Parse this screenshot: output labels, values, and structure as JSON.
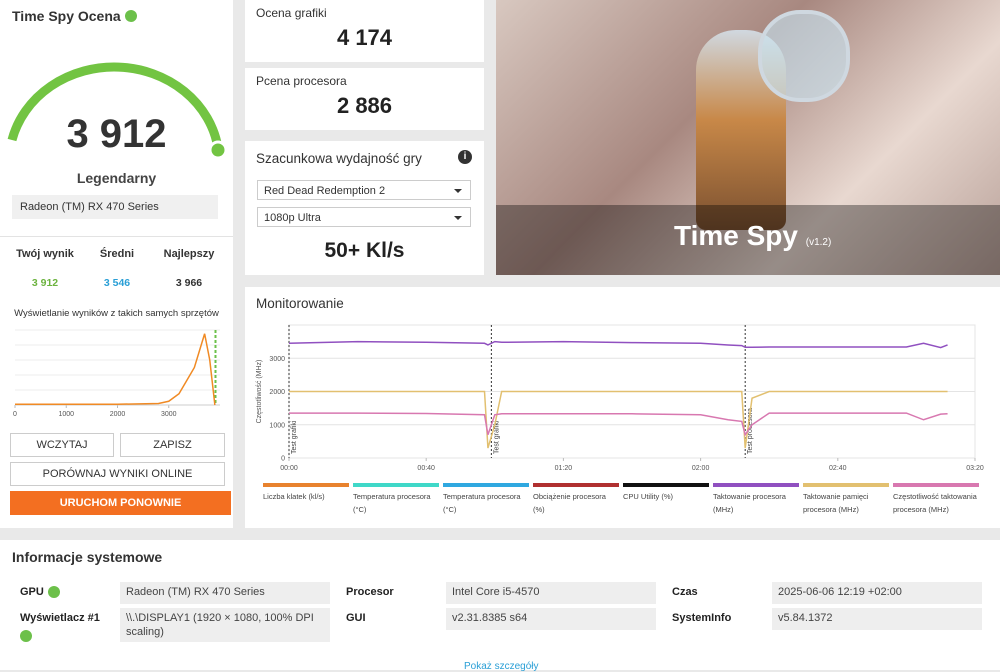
{
  "score_panel": {
    "title": "Time Spy Ocena",
    "score": "3 912",
    "rank": "Legendarny",
    "gpu": "Radeon (TM) RX 470 Series",
    "stats": [
      {
        "label": "Twój wynik",
        "value": "3 912"
      },
      {
        "label": "Średni",
        "value": "3 546"
      },
      {
        "label": "Najlepszy",
        "value": "3 966"
      }
    ],
    "distribution_caption": "Wyświetlanie wyników z takich samych sprzętów",
    "buttons": [
      "WCZYTAJ",
      "ZAPISZ",
      "PORÓWNAJ WYNIKI ONLINE",
      "URUCHOM PONOWNIE"
    ]
  },
  "subscores": [
    {
      "label": "Ocena grafiki",
      "value": "4 174"
    },
    {
      "label": "Pcena procesora",
      "value": "2 886"
    }
  ],
  "estimate": {
    "title": "Szacunkowa wydajność gry",
    "game": "Red Dead Redemption 2",
    "preset": "1080p Ultra",
    "result": "50+ Kl/s"
  },
  "banner": {
    "title": "Time Spy",
    "version": "(v1.2)"
  },
  "monitoring_title": "Monitorowanie",
  "chart_data": [
    {
      "type": "line",
      "x": [
        0,
        2000,
        2800,
        3000,
        3200,
        3500,
        3700,
        3800,
        3900
      ],
      "values": [
        1,
        1,
        2,
        5,
        15,
        50,
        95,
        60,
        0
      ],
      "color": "#f08a24",
      "markers": [
        3912
      ],
      "xlim": [
        0,
        4000
      ],
      "ylim": [
        0,
        100
      ],
      "xticks": [
        0,
        1000,
        2000,
        3000
      ]
    },
    {
      "type": "line",
      "y_label": "Częstotliwość (MHz)",
      "x": [
        0,
        20,
        40,
        57,
        58,
        60,
        62,
        80,
        100,
        120,
        128,
        132,
        133,
        135,
        140,
        160,
        180,
        185,
        190,
        192
      ],
      "series": [
        {
          "name": "Liczba klatek (kl/s)",
          "color": "#e8822e",
          "values": null
        },
        {
          "name": "Temperatura procesora (°C)",
          "color": "#3fd8c8",
          "values": null
        },
        {
          "name": "Temperatura procesora (°C)",
          "color": "#2fa8e0",
          "values": null
        },
        {
          "name": "Obciążenie procesora (%)",
          "color": "#b03030",
          "values": null
        },
        {
          "name": "CPU Utility (%)",
          "color": "#111111",
          "values": null
        },
        {
          "name": "Taktowanie procesora (MHz)",
          "color": "#9050c0",
          "values": [
            3450,
            3500,
            3480,
            3450,
            3400,
            3500,
            3480,
            3500,
            3470,
            3450,
            3400,
            3380,
            3330,
            3330,
            3340,
            3340,
            3340,
            3450,
            3320,
            3400
          ]
        },
        {
          "name": "Taktowanie pamięci procesora (MHz)",
          "color": "#e2c070",
          "values": [
            2000,
            2000,
            2000,
            2000,
            300,
            1000,
            2000,
            2000,
            2000,
            2000,
            2000,
            2000,
            300,
            1800,
            2000,
            2000,
            2000,
            2000,
            2000,
            2000
          ]
        },
        {
          "name": "Częstotliwość taktowania procesora (MHz)",
          "color": "#d878b0",
          "values": [
            1350,
            1350,
            1340,
            1300,
            700,
            1300,
            1330,
            1330,
            1330,
            1300,
            1150,
            1100,
            700,
            1000,
            1350,
            1350,
            1350,
            1150,
            1320,
            1330
          ]
        }
      ],
      "annotations": [
        {
          "x": 0,
          "label": "Test grafiki"
        },
        {
          "x": 59,
          "label": "Test grafiki"
        },
        {
          "x": 133,
          "label": "Test procesora"
        }
      ],
      "xlim": [
        0,
        200
      ],
      "ylim": [
        0,
        4000
      ],
      "yticks": [
        0,
        1000,
        2000,
        3000
      ],
      "xticks": [
        {
          "value": 0,
          "label": "00:00"
        },
        {
          "value": 40,
          "label": "00:40"
        },
        {
          "value": 80,
          "label": "01:20"
        },
        {
          "value": 120,
          "label": "02:00"
        },
        {
          "value": 160,
          "label": "02:40"
        },
        {
          "value": 200,
          "label": "03:20"
        }
      ],
      "grid": true
    }
  ],
  "system_info": {
    "title": "Informacje systemowe",
    "rows": [
      [
        {
          "label": "GPU",
          "value": "Radeon (TM) RX 470 Series"
        },
        {
          "label": "Procesor",
          "value": "Intel Core i5-4570"
        },
        {
          "label": "Czas",
          "value": "2025-06-06 12:19 +02:00"
        }
      ],
      [
        {
          "label": "Wyświetlacz #1",
          "value": "\\\\.\\DISPLAY1 (1920 × 1080, 100% DPI scaling)"
        },
        {
          "label": "GUI",
          "value": "v2.31.8385 s64"
        },
        {
          "label": "SystemInfo",
          "value": "v5.84.1372"
        }
      ]
    ],
    "link": "Pokaż szczegóły"
  }
}
